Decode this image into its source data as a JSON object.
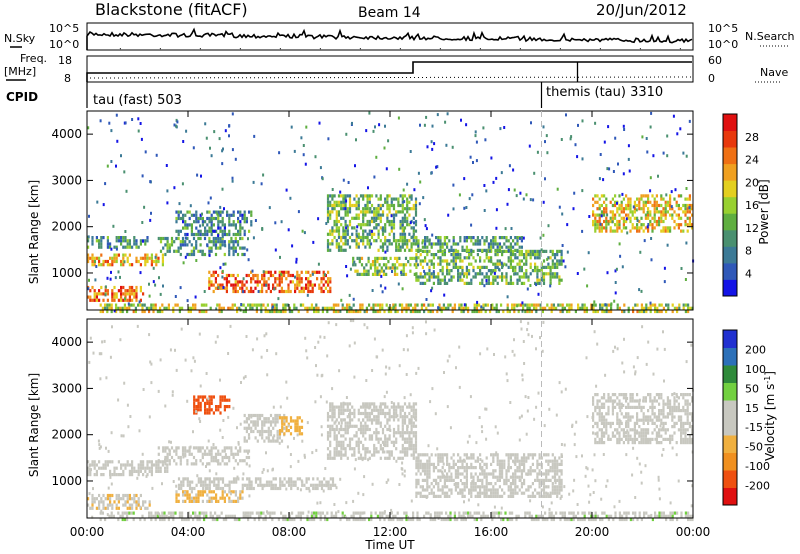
{
  "header": {
    "station": "Blackstone (fitACF)",
    "beam": "Beam 14",
    "date": "20/Jun/2012"
  },
  "noise_panel": {
    "left_label": "N.Sky",
    "right_label": "N.Search",
    "left_ticks": [
      "10^5",
      "10^0"
    ],
    "right_ticks": [
      "10^5",
      "10^0"
    ]
  },
  "freq_panel": {
    "left_label_line1": "Freq.",
    "left_label_line2": "[MHz]",
    "right_label": "Nave",
    "left_ticks": [
      "18",
      "8"
    ],
    "right_ticks": [
      "60",
      "0"
    ]
  },
  "cpid": {
    "label": "CPID",
    "segments": [
      {
        "name": "tau (fast) 503",
        "start_hour": 0,
        "end_hour": 18
      },
      {
        "name": "themis (tau) 3310",
        "start_hour": 18,
        "end_hour": 24
      }
    ]
  },
  "x_axis": {
    "label": "Time UT",
    "ticks": [
      "00:00",
      "04:00",
      "08:00",
      "12:00",
      "16:00",
      "20:00",
      "00:00"
    ],
    "tick_hours": [
      0,
      4,
      8,
      12,
      16,
      20,
      24
    ],
    "range_hours": [
      0,
      24
    ]
  },
  "chart_data": [
    {
      "type": "heatmap",
      "ylabel": "Slant Range [km]",
      "ylim": [
        200,
        4500
      ],
      "yticks": [
        "1000",
        "2000",
        "3000",
        "4000"
      ],
      "colorbar_label": "Power [dB]",
      "colorbar_ticks": [
        "28",
        "24",
        "20",
        "16",
        "12",
        "8",
        "4"
      ],
      "colorbar_range": [
        0,
        30
      ],
      "colorbar_colors": [
        "#1414e6",
        "#2f58b8",
        "#3c7a96",
        "#4a9070",
        "#5fae40",
        "#98d030",
        "#e3cf1f",
        "#f0a020",
        "#ef7014",
        "#e8380c",
        "#e01010"
      ],
      "features": [
        {
          "t0": 0,
          "t1": 3.0,
          "r0": 1160,
          "r1": 1420,
          "level": 20
        },
        {
          "t0": 0,
          "t1": 2.5,
          "r0": 1560,
          "r1": 1800,
          "level": 9
        },
        {
          "t0": 0,
          "t1": 2.2,
          "r0": 380,
          "r1": 720,
          "level": 22
        },
        {
          "t0": 2.8,
          "t1": 6.2,
          "r0": 1380,
          "r1": 1780,
          "level": 10
        },
        {
          "t0": 4.8,
          "t1": 9.6,
          "r0": 580,
          "r1": 1050,
          "level": 24
        },
        {
          "t0": 0.5,
          "t1": 24,
          "r0": 200,
          "r1": 340,
          "level": 16
        },
        {
          "t0": 3.5,
          "t1": 6.5,
          "r0": 1800,
          "r1": 2350,
          "level": 8
        },
        {
          "t0": 9.5,
          "t1": 13.0,
          "r0": 1500,
          "r1": 2700,
          "level": 12
        },
        {
          "t0": 10.5,
          "t1": 13.0,
          "r0": 1000,
          "r1": 1350,
          "level": 14
        },
        {
          "t0": 13.0,
          "t1": 18.8,
          "r0": 780,
          "r1": 1500,
          "level": 12
        },
        {
          "t0": 13.0,
          "t1": 17.2,
          "r0": 1500,
          "r1": 1800,
          "level": 10
        },
        {
          "t0": 20.0,
          "t1": 24,
          "r0": 1900,
          "r1": 2700,
          "level": 18
        }
      ]
    },
    {
      "type": "heatmap",
      "ylabel": "Slant Range [km]",
      "ylim": [
        200,
        4500
      ],
      "yticks": [
        "1000",
        "2000",
        "3000",
        "4000"
      ],
      "colorbar_label": "Velocity [m s^-1]",
      "colorbar_ticks": [
        "200",
        "100",
        "50",
        "15",
        "-15",
        "-50",
        "-100",
        "-200"
      ],
      "colorbar_range": [
        -250,
        250
      ],
      "colorbar_colors": [
        "#e01010",
        "#ef5010",
        "#f09020",
        "#f0b040",
        "#c8c8c0",
        "#c8c8c0",
        "#72d040",
        "#2f8a3a",
        "#2c70b8",
        "#2030d0"
      ],
      "features": [
        {
          "t0": 0,
          "t1": 3.2,
          "r0": 1150,
          "r1": 1450,
          "vel": 0
        },
        {
          "t0": 2.8,
          "t1": 6.4,
          "r0": 1380,
          "r1": 1750,
          "vel": 0
        },
        {
          "t0": 6.2,
          "t1": 7.8,
          "r0": 1850,
          "r1": 2450,
          "vel": 0
        },
        {
          "t0": 3.6,
          "t1": 9.8,
          "r0": 820,
          "r1": 1080,
          "vel": 30
        },
        {
          "t0": 3.5,
          "t1": 6.2,
          "r0": 580,
          "r1": 800,
          "vel": -60
        },
        {
          "t0": 0,
          "t1": 2.5,
          "r0": 420,
          "r1": 720,
          "vel": -40
        },
        {
          "t0": 4.2,
          "t1": 5.6,
          "r0": 2500,
          "r1": 2850,
          "vel": -180
        },
        {
          "t0": 7.6,
          "t1": 8.5,
          "r0": 2050,
          "r1": 2400,
          "vel": -70
        },
        {
          "t0": 9.5,
          "t1": 13,
          "r0": 1500,
          "r1": 2700,
          "vel": 0
        },
        {
          "t0": 13,
          "t1": 18.8,
          "r0": 700,
          "r1": 1600,
          "vel": 0
        },
        {
          "t0": 20,
          "t1": 24,
          "r0": 1800,
          "r1": 2900,
          "vel": 0
        },
        {
          "t0": 0.5,
          "t1": 24,
          "r0": 200,
          "r1": 340,
          "vel": 35
        }
      ]
    }
  ]
}
